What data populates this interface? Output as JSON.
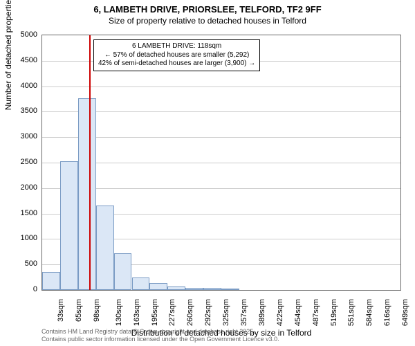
{
  "title_line1": "6, LAMBETH DRIVE, PRIORSLEE, TELFORD, TF2 9FF",
  "title_line2": "Size of property relative to detached houses in Telford",
  "ylabel": "Number of detached properties",
  "xlabel": "Distribution of detached houses by size in Telford",
  "footer1": "Contains HM Land Registry data © Crown copyright and database right 2025.",
  "footer2": "Contains public sector information licensed under the Open Government Licence v3.0.",
  "chart": {
    "type": "histogram",
    "ylim": [
      0,
      5000
    ],
    "ytick_step": 500,
    "background_color": "#ffffff",
    "grid_color": "#cccccc",
    "border_color": "#666666",
    "bar_fill": "#dbe7f6",
    "bar_border": "#7a9bc4",
    "marker_color": "#cc0000",
    "label_fontsize": 12,
    "tick_fontsize": 11,
    "title_fontsize": 13,
    "x_start": 33,
    "x_step": 32.4,
    "x_count": 21,
    "x_suffix": "sqm",
    "x_round": 0,
    "bar_values": [
      360,
      2530,
      3760,
      1660,
      720,
      245,
      130,
      70,
      40,
      35,
      20,
      0,
      0,
      0,
      0,
      0,
      0,
      0,
      0,
      0
    ],
    "marker_x": 118,
    "annot_title": "6 LAMBETH DRIVE: 118sqm",
    "annot_line2": "← 57% of detached houses are smaller (5,292)",
    "annot_line3": "42% of semi-detached houses are larger (3,900) →"
  }
}
